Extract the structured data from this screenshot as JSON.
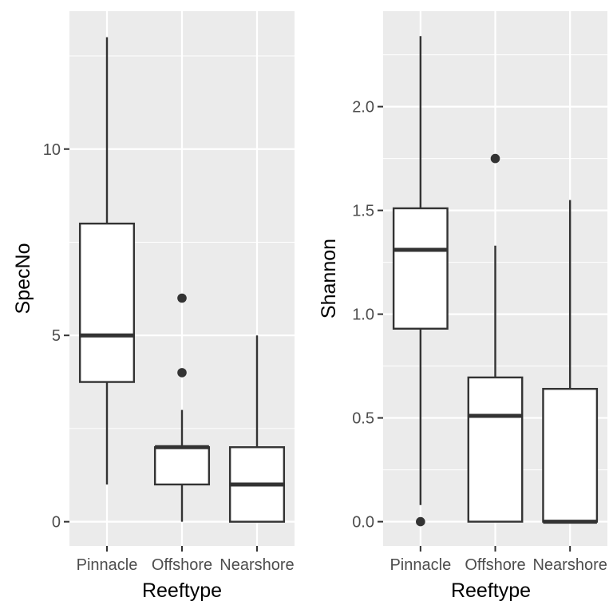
{
  "chart_data": [
    {
      "type": "boxplot",
      "xlabel": "Reeftype",
      "ylabel": "SpecNo",
      "categories": [
        "Pinnacle",
        "Offshore",
        "Nearshore"
      ],
      "ylim": [
        -0.65,
        13.7
      ],
      "yticks": [
        0,
        5,
        10
      ],
      "ytick_labels": [
        "0",
        "5",
        "10"
      ],
      "boxes": [
        {
          "category": "Pinnacle",
          "whisker_low": 1,
          "q1": 3.75,
          "median": 5,
          "q3": 8,
          "whisker_high": 13,
          "outliers": []
        },
        {
          "category": "Offshore",
          "whisker_low": 0,
          "q1": 1,
          "median": 2,
          "q3": 2,
          "whisker_high": 3,
          "outliers": [
            4,
            6
          ]
        },
        {
          "category": "Nearshore",
          "whisker_low": 0,
          "q1": 0,
          "median": 1,
          "q3": 2,
          "whisker_high": 5,
          "outliers": []
        }
      ],
      "grid": true,
      "legend": "none"
    },
    {
      "type": "boxplot",
      "xlabel": "Reeftype",
      "ylabel": "Shannon",
      "categories": [
        "Pinnacle",
        "Offshore",
        "Nearshore"
      ],
      "ylim": [
        -0.117,
        2.46
      ],
      "yticks": [
        0,
        0.5,
        1,
        1.5,
        2
      ],
      "ytick_labels": [
        "0.0",
        "0.5",
        "1.0",
        "1.5",
        "2.0"
      ],
      "boxes": [
        {
          "category": "Pinnacle",
          "whisker_low": 0.08,
          "q1": 0.93,
          "median": 1.31,
          "q3": 1.51,
          "whisker_high": 2.34,
          "outliers": [
            0
          ]
        },
        {
          "category": "Offshore",
          "whisker_low": 0,
          "q1": 0,
          "median": 0.51,
          "q3": 0.695,
          "whisker_high": 1.33,
          "outliers": [
            1.75
          ]
        },
        {
          "category": "Nearshore",
          "whisker_low": 0,
          "q1": 0,
          "median": 0,
          "q3": 0.64,
          "whisker_high": 1.55,
          "outliers": []
        }
      ],
      "grid": true,
      "legend": "none"
    }
  ]
}
